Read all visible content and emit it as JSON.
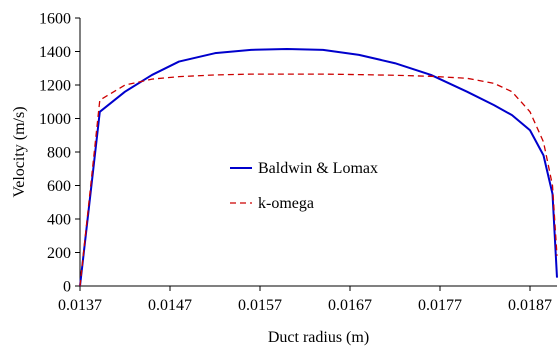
{
  "chart_data": {
    "type": "line",
    "title": "",
    "xlabel": "Duct radius (m)",
    "ylabel": "Velocity (m/s)",
    "xlim": [
      0.0137,
      0.019
    ],
    "ylim": [
      0,
      1600
    ],
    "x_ticks": [
      {
        "value": 0.0137,
        "label": "0.0137"
      },
      {
        "value": 0.0147,
        "label": "0.0147"
      },
      {
        "value": 0.0157,
        "label": "0.0157"
      },
      {
        "value": 0.0167,
        "label": "0.0167"
      },
      {
        "value": 0.0177,
        "label": "0.0177"
      },
      {
        "value": 0.0187,
        "label": "0.0187"
      }
    ],
    "y_ticks": [
      {
        "value": 0,
        "label": "0"
      },
      {
        "value": 200,
        "label": "200"
      },
      {
        "value": 400,
        "label": "400"
      },
      {
        "value": 600,
        "label": "600"
      },
      {
        "value": 800,
        "label": "800"
      },
      {
        "value": 1000,
        "label": "1000"
      },
      {
        "value": 1200,
        "label": "1200"
      },
      {
        "value": 1400,
        "label": "1400"
      },
      {
        "value": 1600,
        "label": "1600"
      }
    ],
    "grid": false,
    "legend_position": "center-right",
    "series": [
      {
        "name": "Baldwin & Lomax",
        "color": "#0000CC",
        "style": "solid",
        "x": [
          0.0137,
          0.01392,
          0.0142,
          0.0145,
          0.0148,
          0.0152,
          0.0156,
          0.016,
          0.0164,
          0.0168,
          0.0172,
          0.0176,
          0.018,
          0.0183,
          0.0185,
          0.0187,
          0.01885,
          0.01895,
          0.019
        ],
        "y": [
          0,
          1040,
          1160,
          1260,
          1340,
          1390,
          1410,
          1415,
          1410,
          1380,
          1330,
          1260,
          1160,
          1080,
          1020,
          930,
          780,
          550,
          50
        ]
      },
      {
        "name": "k-omega",
        "color": "#CC0000",
        "style": "dashed",
        "x": [
          0.0137,
          0.01392,
          0.0142,
          0.0145,
          0.0148,
          0.0152,
          0.0156,
          0.016,
          0.0164,
          0.0168,
          0.0172,
          0.0176,
          0.018,
          0.0183,
          0.0185,
          0.0187,
          0.01885,
          0.01895,
          0.019
        ],
        "y": [
          0,
          1110,
          1200,
          1235,
          1250,
          1260,
          1265,
          1265,
          1265,
          1262,
          1258,
          1252,
          1240,
          1210,
          1160,
          1040,
          860,
          600,
          180
        ]
      }
    ]
  }
}
